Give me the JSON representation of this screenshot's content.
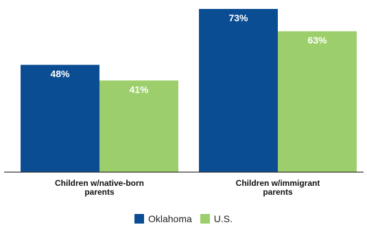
{
  "chart_data": {
    "type": "bar",
    "categories": [
      "Children w/native-born parents",
      "Children w/immigrant parents"
    ],
    "category_lines": [
      [
        "Children w/native-born",
        "parents"
      ],
      [
        "Children w/immigrant",
        "parents"
      ]
    ],
    "series": [
      {
        "name": "Oklahoma",
        "values": [
          48,
          73
        ],
        "labels": [
          "48%",
          "73%"
        ],
        "color": "#0b4d93"
      },
      {
        "name": "U.S.",
        "values": [
          41,
          63
        ],
        "labels": [
          "41%",
          "63%"
        ],
        "color": "#9ccf6b"
      }
    ],
    "ylim": [
      0,
      80
    ],
    "grid": false,
    "legend_position": "bottom"
  }
}
